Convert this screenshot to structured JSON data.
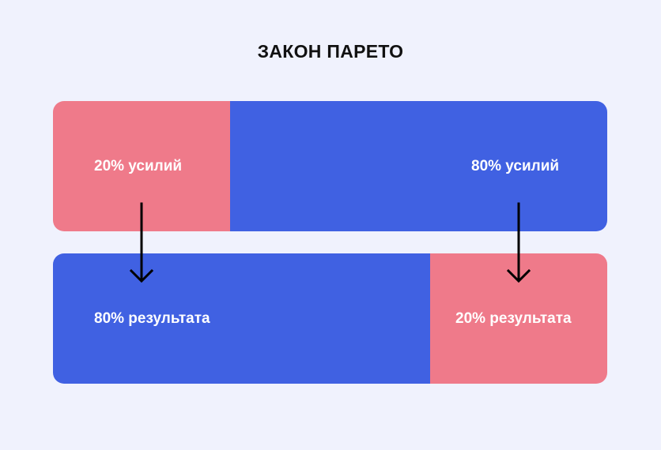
{
  "title": "ЗАКОН ПАРЕТО",
  "colors": {
    "background": "#F0F2FD",
    "blue": "#4061E2",
    "pink": "#EF7A8A",
    "arrow": "#000000"
  },
  "bars": {
    "top": {
      "segments": [
        {
          "label": "20% усилий",
          "share": 0.2,
          "color": "pink"
        },
        {
          "label": "80% усилий",
          "share": 0.8,
          "color": "blue"
        }
      ]
    },
    "bottom": {
      "segments": [
        {
          "label": "80% результата",
          "share": 0.8,
          "color": "blue"
        },
        {
          "label": "20% результата",
          "share": 0.2,
          "color": "pink"
        }
      ]
    }
  },
  "arrows": [
    {
      "from": "20% усилий",
      "to": "80% результата"
    },
    {
      "from": "80% усилий",
      "to": "20% результата"
    }
  ]
}
